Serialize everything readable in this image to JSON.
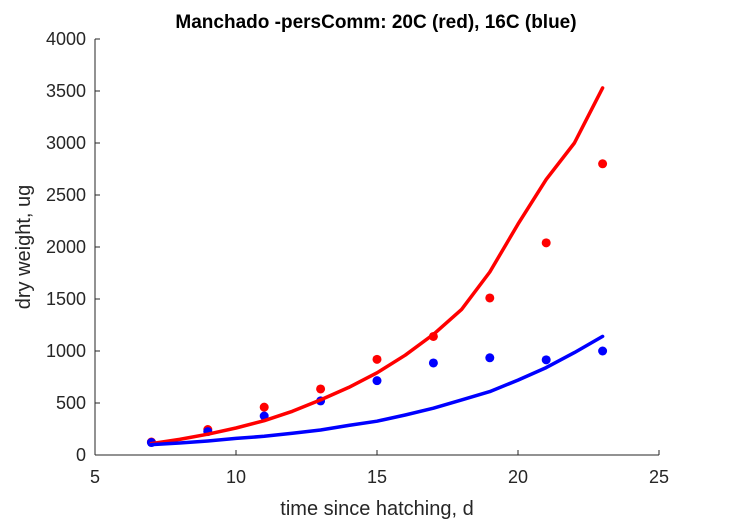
{
  "chart_data": {
    "type": "scatter",
    "title": "Manchado -persComm: 20C (red), 16C (blue)",
    "xlabel": "time since hatching, d",
    "ylabel": "dry weight, ug",
    "xlim": [
      5,
      25
    ],
    "ylim": [
      0,
      4000
    ],
    "xticks": [
      5,
      10,
      15,
      20,
      25
    ],
    "yticks": [
      0,
      500,
      1000,
      1500,
      2000,
      2500,
      3000,
      3500,
      4000
    ],
    "grid": false,
    "legend": "none",
    "series": [
      {
        "kind": "points",
        "color": "#ff0000",
        "x": [
          7,
          9,
          11,
          13,
          15,
          17,
          19,
          21,
          23
        ],
        "y": [
          125,
          245,
          460,
          635,
          920,
          1140,
          1510,
          2040,
          2800
        ]
      },
      {
        "kind": "points",
        "color": "#0000ff",
        "x": [
          7,
          9,
          11,
          13,
          15,
          17,
          19,
          21,
          23
        ],
        "y": [
          120,
          225,
          375,
          520,
          715,
          885,
          935,
          915,
          1000
        ]
      },
      {
        "kind": "line",
        "color": "#ff0000",
        "x": [
          7,
          8,
          9,
          10,
          11,
          12,
          13,
          14,
          15,
          16,
          17,
          18,
          19,
          20,
          21,
          22,
          23
        ],
        "y": [
          110,
          150,
          200,
          260,
          330,
          420,
          530,
          650,
          790,
          960,
          1160,
          1400,
          1760,
          2220,
          2650,
          3000,
          3530
        ]
      },
      {
        "kind": "line",
        "color": "#0000ff",
        "x": [
          7,
          8,
          9,
          10,
          11,
          12,
          13,
          14,
          15,
          16,
          17,
          18,
          19,
          20,
          21,
          22,
          23
        ],
        "y": [
          100,
          115,
          135,
          160,
          180,
          210,
          240,
          285,
          325,
          385,
          450,
          530,
          610,
          720,
          840,
          985,
          1140
        ]
      }
    ]
  }
}
